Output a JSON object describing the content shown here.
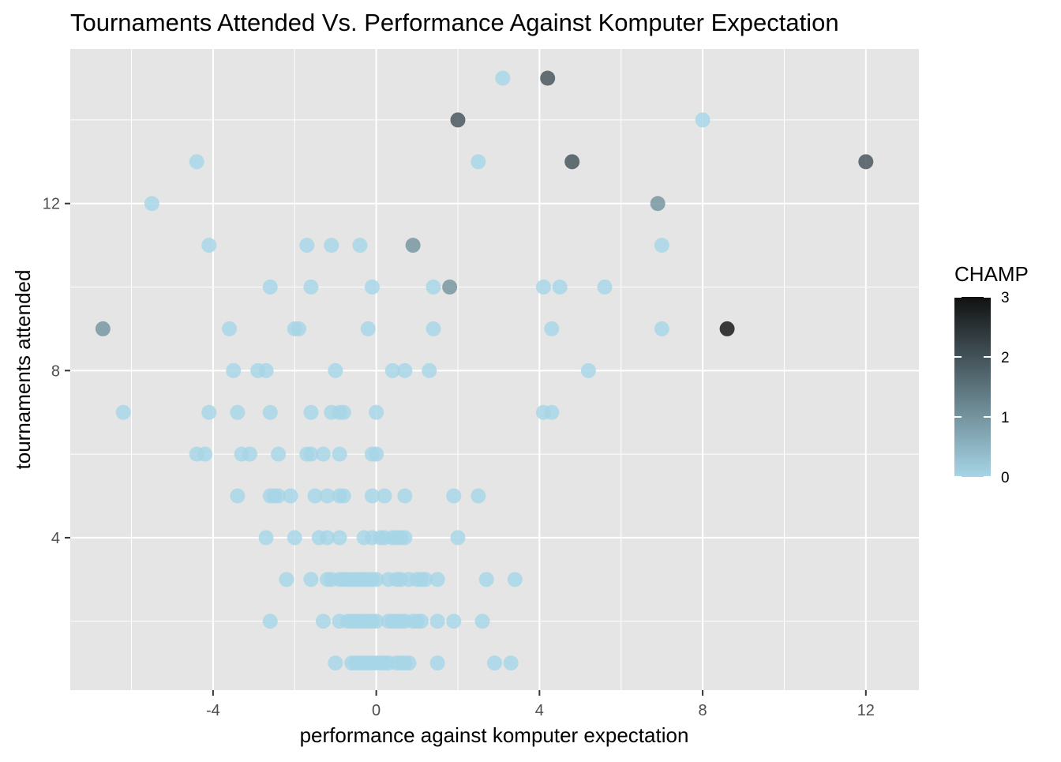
{
  "chart_data": {
    "type": "scatter",
    "title": "Tournaments Attended Vs. Performance Against Komputer Expectation",
    "xlabel": "performance against komputer expectation",
    "ylabel": "tournaments attended",
    "xlim": [
      -7.5,
      13.3
    ],
    "ylim": [
      0.35,
      15.7
    ],
    "x_ticks": [
      -4,
      0,
      4,
      8,
      12
    ],
    "x_tick_labels": [
      "-4",
      "0",
      "4",
      "8",
      "12"
    ],
    "y_ticks": [
      4,
      8,
      12
    ],
    "y_tick_labels": [
      "4",
      "8",
      "12"
    ],
    "grid": true,
    "legend": {
      "title": "CHAMP",
      "position": "right",
      "ticks": [
        "0",
        "1",
        "2",
        "3"
      ],
      "min": 0,
      "max": 3,
      "low_color": "#a6d5e6",
      "high_color": "#111111"
    },
    "colors": {
      "panel_background": "#e5e5e5",
      "grid_major": "#ffffff",
      "champ_0": "#a6d5e6",
      "champ_3": "#111111"
    },
    "points": [
      {
        "x": 3.1,
        "y": 15,
        "champ": 0
      },
      {
        "x": 4.2,
        "y": 15,
        "champ": 2
      },
      {
        "x": 2.0,
        "y": 14,
        "champ": 2
      },
      {
        "x": 8.0,
        "y": 14,
        "champ": 0
      },
      {
        "x": -4.4,
        "y": 13,
        "champ": 0
      },
      {
        "x": 2.5,
        "y": 13,
        "champ": 0
      },
      {
        "x": 4.8,
        "y": 13,
        "champ": 2
      },
      {
        "x": 12.0,
        "y": 13,
        "champ": 2
      },
      {
        "x": -5.5,
        "y": 12,
        "champ": 0
      },
      {
        "x": 6.9,
        "y": 12,
        "champ": 1
      },
      {
        "x": -4.1,
        "y": 11,
        "champ": 0
      },
      {
        "x": -1.7,
        "y": 11,
        "champ": 0
      },
      {
        "x": -1.1,
        "y": 11,
        "champ": 0
      },
      {
        "x": -0.4,
        "y": 11,
        "champ": 0
      },
      {
        "x": 0.9,
        "y": 11,
        "champ": 1
      },
      {
        "x": 7.0,
        "y": 11,
        "champ": 0
      },
      {
        "x": -2.6,
        "y": 10,
        "champ": 0
      },
      {
        "x": -1.6,
        "y": 10,
        "champ": 0
      },
      {
        "x": -0.1,
        "y": 10,
        "champ": 0
      },
      {
        "x": 1.4,
        "y": 10,
        "champ": 0
      },
      {
        "x": 1.8,
        "y": 10,
        "champ": 1
      },
      {
        "x": 4.1,
        "y": 10,
        "champ": 0
      },
      {
        "x": 4.5,
        "y": 10,
        "champ": 0
      },
      {
        "x": 5.6,
        "y": 10,
        "champ": 0
      },
      {
        "x": -6.7,
        "y": 9,
        "champ": 1
      },
      {
        "x": -3.6,
        "y": 9,
        "champ": 0
      },
      {
        "x": -2.0,
        "y": 9,
        "champ": 0
      },
      {
        "x": -1.9,
        "y": 9,
        "champ": 0
      },
      {
        "x": -0.2,
        "y": 9,
        "champ": 0
      },
      {
        "x": 1.4,
        "y": 9,
        "champ": 0
      },
      {
        "x": 4.3,
        "y": 9,
        "champ": 0
      },
      {
        "x": 7.0,
        "y": 9,
        "champ": 0
      },
      {
        "x": 8.6,
        "y": 9,
        "champ": 3
      },
      {
        "x": -3.5,
        "y": 8,
        "champ": 0
      },
      {
        "x": -2.9,
        "y": 8,
        "champ": 0
      },
      {
        "x": -2.7,
        "y": 8,
        "champ": 0
      },
      {
        "x": -1.0,
        "y": 8,
        "champ": 0
      },
      {
        "x": 0.4,
        "y": 8,
        "champ": 0
      },
      {
        "x": 0.7,
        "y": 8,
        "champ": 0
      },
      {
        "x": 1.3,
        "y": 8,
        "champ": 0
      },
      {
        "x": 5.2,
        "y": 8,
        "champ": 0
      },
      {
        "x": -6.2,
        "y": 7,
        "champ": 0
      },
      {
        "x": -4.1,
        "y": 7,
        "champ": 0
      },
      {
        "x": -3.4,
        "y": 7,
        "champ": 0
      },
      {
        "x": -2.6,
        "y": 7,
        "champ": 0
      },
      {
        "x": -1.6,
        "y": 7,
        "champ": 0
      },
      {
        "x": -1.1,
        "y": 7,
        "champ": 0
      },
      {
        "x": -0.9,
        "y": 7,
        "champ": 0
      },
      {
        "x": -0.8,
        "y": 7,
        "champ": 0
      },
      {
        "x": 0.0,
        "y": 7,
        "champ": 0
      },
      {
        "x": 4.1,
        "y": 7,
        "champ": 0
      },
      {
        "x": 4.3,
        "y": 7,
        "champ": 0
      },
      {
        "x": -4.4,
        "y": 6,
        "champ": 0
      },
      {
        "x": -4.2,
        "y": 6,
        "champ": 0
      },
      {
        "x": -3.3,
        "y": 6,
        "champ": 0
      },
      {
        "x": -3.1,
        "y": 6,
        "champ": 0
      },
      {
        "x": -2.4,
        "y": 6,
        "champ": 0
      },
      {
        "x": -1.7,
        "y": 6,
        "champ": 0
      },
      {
        "x": -1.6,
        "y": 6,
        "champ": 0
      },
      {
        "x": -1.3,
        "y": 6,
        "champ": 0
      },
      {
        "x": -0.9,
        "y": 6,
        "champ": 0
      },
      {
        "x": -0.1,
        "y": 6,
        "champ": 0
      },
      {
        "x": 0.0,
        "y": 6,
        "champ": 0
      },
      {
        "x": -3.4,
        "y": 5,
        "champ": 0
      },
      {
        "x": -2.6,
        "y": 5,
        "champ": 0
      },
      {
        "x": -2.5,
        "y": 5,
        "champ": 0
      },
      {
        "x": -2.4,
        "y": 5,
        "champ": 0
      },
      {
        "x": -2.1,
        "y": 5,
        "champ": 0
      },
      {
        "x": -1.5,
        "y": 5,
        "champ": 0
      },
      {
        "x": -1.2,
        "y": 5,
        "champ": 0
      },
      {
        "x": -0.9,
        "y": 5,
        "champ": 0
      },
      {
        "x": -0.8,
        "y": 5,
        "champ": 0
      },
      {
        "x": -0.1,
        "y": 5,
        "champ": 0
      },
      {
        "x": 0.2,
        "y": 5,
        "champ": 0
      },
      {
        "x": 0.7,
        "y": 5,
        "champ": 0
      },
      {
        "x": 1.9,
        "y": 5,
        "champ": 0
      },
      {
        "x": 2.5,
        "y": 5,
        "champ": 0
      },
      {
        "x": -2.7,
        "y": 4,
        "champ": 0
      },
      {
        "x": -2.0,
        "y": 4,
        "champ": 0
      },
      {
        "x": -1.4,
        "y": 4,
        "champ": 0
      },
      {
        "x": -1.2,
        "y": 4,
        "champ": 0
      },
      {
        "x": -0.9,
        "y": 4,
        "champ": 0
      },
      {
        "x": -0.3,
        "y": 4,
        "champ": 0
      },
      {
        "x": -0.1,
        "y": 4,
        "champ": 0
      },
      {
        "x": 0.1,
        "y": 4,
        "champ": 0
      },
      {
        "x": 0.2,
        "y": 4,
        "champ": 0
      },
      {
        "x": 0.4,
        "y": 4,
        "champ": 0
      },
      {
        "x": 0.5,
        "y": 4,
        "champ": 0
      },
      {
        "x": 0.6,
        "y": 4,
        "champ": 0
      },
      {
        "x": 0.7,
        "y": 4,
        "champ": 0
      },
      {
        "x": 2.0,
        "y": 4,
        "champ": 0
      },
      {
        "x": -2.2,
        "y": 3,
        "champ": 0
      },
      {
        "x": -1.6,
        "y": 3,
        "champ": 0
      },
      {
        "x": -1.2,
        "y": 3,
        "champ": 0
      },
      {
        "x": -1.1,
        "y": 3,
        "champ": 0
      },
      {
        "x": -0.9,
        "y": 3,
        "champ": 0
      },
      {
        "x": -0.8,
        "y": 3,
        "champ": 0
      },
      {
        "x": -0.7,
        "y": 3,
        "champ": 0
      },
      {
        "x": -0.6,
        "y": 3,
        "champ": 0
      },
      {
        "x": -0.5,
        "y": 3,
        "champ": 0
      },
      {
        "x": -0.4,
        "y": 3,
        "champ": 0
      },
      {
        "x": -0.3,
        "y": 3,
        "champ": 0
      },
      {
        "x": -0.2,
        "y": 3,
        "champ": 0
      },
      {
        "x": -0.1,
        "y": 3,
        "champ": 0
      },
      {
        "x": 0.0,
        "y": 3,
        "champ": 0
      },
      {
        "x": 0.3,
        "y": 3,
        "champ": 0
      },
      {
        "x": 0.5,
        "y": 3,
        "champ": 0
      },
      {
        "x": 0.6,
        "y": 3,
        "champ": 0
      },
      {
        "x": 0.8,
        "y": 3,
        "champ": 0
      },
      {
        "x": 1.0,
        "y": 3,
        "champ": 0
      },
      {
        "x": 1.1,
        "y": 3,
        "champ": 0
      },
      {
        "x": 1.2,
        "y": 3,
        "champ": 0
      },
      {
        "x": 1.5,
        "y": 3,
        "champ": 0
      },
      {
        "x": 2.7,
        "y": 3,
        "champ": 0
      },
      {
        "x": 3.4,
        "y": 3,
        "champ": 0
      },
      {
        "x": -2.6,
        "y": 2,
        "champ": 0
      },
      {
        "x": -1.3,
        "y": 2,
        "champ": 0
      },
      {
        "x": -0.9,
        "y": 2,
        "champ": 0
      },
      {
        "x": -0.7,
        "y": 2,
        "champ": 0
      },
      {
        "x": -0.6,
        "y": 2,
        "champ": 0
      },
      {
        "x": -0.5,
        "y": 2,
        "champ": 0
      },
      {
        "x": -0.4,
        "y": 2,
        "champ": 0
      },
      {
        "x": -0.3,
        "y": 2,
        "champ": 0
      },
      {
        "x": -0.2,
        "y": 2,
        "champ": 0
      },
      {
        "x": -0.1,
        "y": 2,
        "champ": 0
      },
      {
        "x": 0.0,
        "y": 2,
        "champ": 0
      },
      {
        "x": 0.3,
        "y": 2,
        "champ": 0
      },
      {
        "x": 0.4,
        "y": 2,
        "champ": 0
      },
      {
        "x": 0.5,
        "y": 2,
        "champ": 0
      },
      {
        "x": 0.6,
        "y": 2,
        "champ": 0
      },
      {
        "x": 0.7,
        "y": 2,
        "champ": 0
      },
      {
        "x": 0.9,
        "y": 2,
        "champ": 0
      },
      {
        "x": 1.0,
        "y": 2,
        "champ": 0
      },
      {
        "x": 1.1,
        "y": 2,
        "champ": 0
      },
      {
        "x": 1.5,
        "y": 2,
        "champ": 0
      },
      {
        "x": 1.9,
        "y": 2,
        "champ": 0
      },
      {
        "x": 2.6,
        "y": 2,
        "champ": 0
      },
      {
        "x": -1.0,
        "y": 1,
        "champ": 0
      },
      {
        "x": -0.6,
        "y": 1,
        "champ": 0
      },
      {
        "x": -0.5,
        "y": 1,
        "champ": 0
      },
      {
        "x": -0.4,
        "y": 1,
        "champ": 0
      },
      {
        "x": -0.3,
        "y": 1,
        "champ": 0
      },
      {
        "x": -0.2,
        "y": 1,
        "champ": 0
      },
      {
        "x": -0.1,
        "y": 1,
        "champ": 0
      },
      {
        "x": 0.0,
        "y": 1,
        "champ": 0
      },
      {
        "x": 0.1,
        "y": 1,
        "champ": 0
      },
      {
        "x": 0.2,
        "y": 1,
        "champ": 0
      },
      {
        "x": 0.3,
        "y": 1,
        "champ": 0
      },
      {
        "x": 0.5,
        "y": 1,
        "champ": 0
      },
      {
        "x": 0.6,
        "y": 1,
        "champ": 0
      },
      {
        "x": 0.7,
        "y": 1,
        "champ": 0
      },
      {
        "x": 0.8,
        "y": 1,
        "champ": 0
      },
      {
        "x": 1.5,
        "y": 1,
        "champ": 0
      },
      {
        "x": 2.9,
        "y": 1,
        "champ": 0
      },
      {
        "x": 3.3,
        "y": 1,
        "champ": 0
      }
    ]
  }
}
